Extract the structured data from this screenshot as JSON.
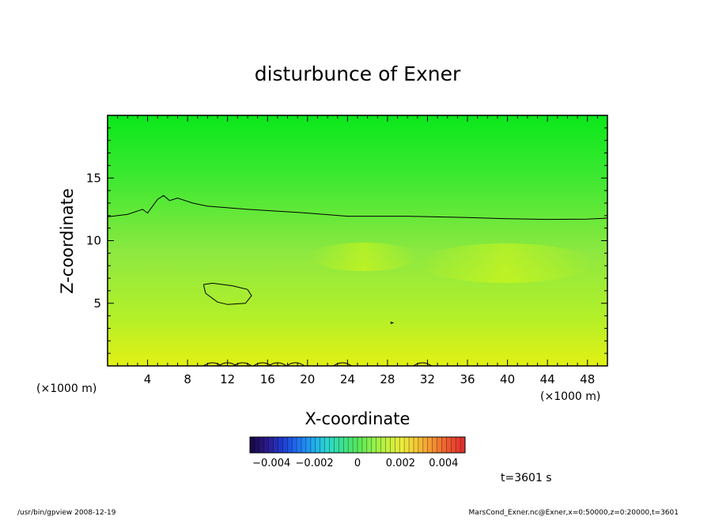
{
  "chart_data": {
    "type": "heatmap",
    "title": "disturbunce of Exner",
    "xlabel": "X-coordinate",
    "ylabel": "Z-coordinate",
    "x_unit": "(×1000 m)",
    "y_unit": "(×1000 m)",
    "xlim": [
      0,
      50
    ],
    "ylim": [
      0,
      20
    ],
    "x_ticks": [
      4,
      8,
      12,
      16,
      20,
      24,
      28,
      32,
      36,
      40,
      44,
      48
    ],
    "y_ticks": [
      5,
      10,
      15
    ],
    "colorbar": {
      "range": [
        -0.005,
        0.005
      ],
      "ticks": [
        -0.004,
        -0.002,
        0,
        0.002,
        0.004
      ],
      "tick_labels": [
        "−0.004",
        "−0.002",
        "0",
        "0.002",
        "0.004"
      ],
      "colors": [
        "#1a0a4a",
        "#2b1a8c",
        "#1e3cd0",
        "#1f6ff0",
        "#21a7f0",
        "#2ad6d0",
        "#3de08f",
        "#55e85a",
        "#8ef04a",
        "#c4f03f",
        "#ecec3a",
        "#f5c236",
        "#f59032",
        "#ef5a30",
        "#e0302e"
      ]
    },
    "field_colors": {
      "top": "#0ae81a",
      "upper": "#3ee832",
      "middle": "#8ee840",
      "lower": "#b2f02a",
      "surface": "#e2f014"
    },
    "contours": [
      {
        "level_desc": "upper",
        "points": [
          [
            0,
            11.9
          ],
          [
            2,
            12.1
          ],
          [
            3.5,
            12.5
          ],
          [
            4,
            12.2
          ],
          [
            5,
            13.3
          ],
          [
            5.6,
            13.6
          ],
          [
            6.2,
            13.2
          ],
          [
            7,
            13.4
          ],
          [
            8.5,
            13.0
          ],
          [
            10,
            12.75
          ],
          [
            14,
            12.5
          ],
          [
            20,
            12.2
          ],
          [
            24,
            11.95
          ],
          [
            30,
            11.95
          ],
          [
            36,
            11.85
          ],
          [
            40,
            11.75
          ],
          [
            44,
            11.7
          ],
          [
            48,
            11.72
          ],
          [
            50,
            11.8
          ]
        ]
      },
      {
        "level_desc": "closed",
        "points": [
          [
            9.6,
            6.5
          ],
          [
            10.5,
            6.6
          ],
          [
            12.5,
            6.4
          ],
          [
            14,
            6.1
          ],
          [
            14.4,
            5.6
          ],
          [
            13.8,
            5.0
          ],
          [
            12,
            4.9
          ],
          [
            11,
            5.1
          ],
          [
            9.8,
            5.8
          ],
          [
            9.6,
            6.5
          ]
        ]
      }
    ],
    "annotation_time": "t=3601 s"
  },
  "footer": {
    "left": "/usr/bin/gpview   2008-12-19",
    "right": "MarsCond_Exner.nc@Exner,x=0:50000,z=0:20000,t=3601"
  }
}
